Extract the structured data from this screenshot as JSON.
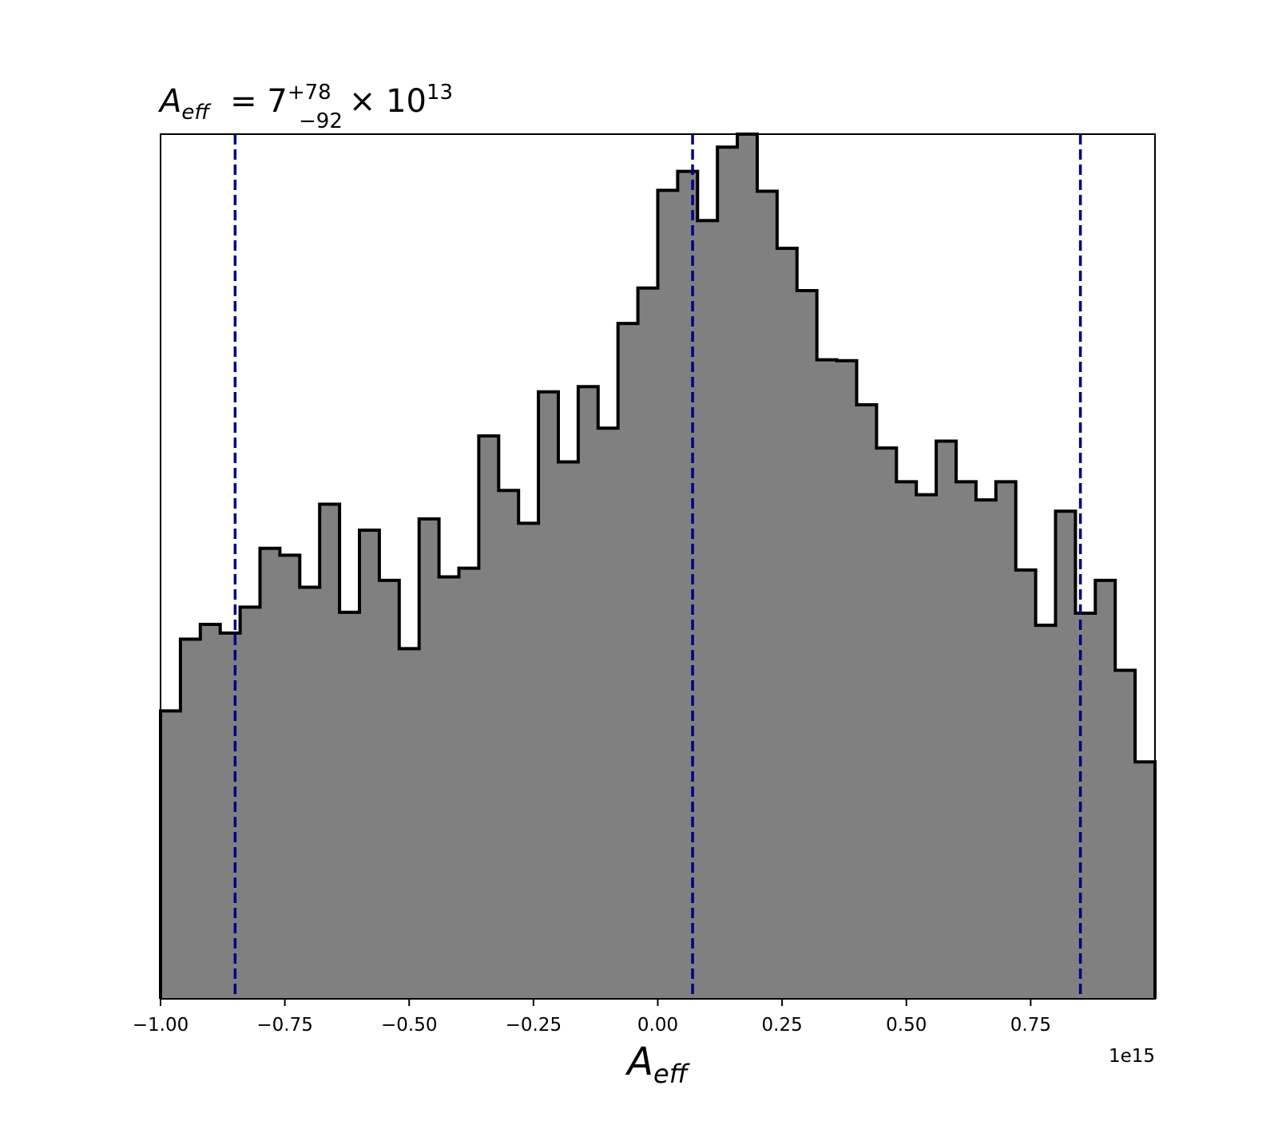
{
  "chart_data": {
    "type": "histogram",
    "title": {
      "symbol": "A",
      "symbol_sub": "eff",
      "equals": "= 7",
      "upper_err": "+78",
      "lower_err": "−92",
      "multiplier": "× 10",
      "exponent": "13"
    },
    "xlabel": {
      "symbol": "A",
      "symbol_sub": "eff"
    },
    "x_offset_label": "1e15",
    "xlim": [
      -1.0,
      1.0
    ],
    "ylim": [
      0,
      100
    ],
    "xticks": [
      {
        "value": -1.0,
        "label": "−1.00"
      },
      {
        "value": -0.75,
        "label": "−0.75"
      },
      {
        "value": -0.5,
        "label": "−0.50"
      },
      {
        "value": -0.25,
        "label": "−0.25"
      },
      {
        "value": 0.0,
        "label": "0.00"
      },
      {
        "value": 0.25,
        "label": "0.25"
      },
      {
        "value": 0.5,
        "label": "0.50"
      },
      {
        "value": 0.75,
        "label": "0.75"
      }
    ],
    "bins_start": -1.0,
    "bin_width": 0.04,
    "counts": [
      33.3,
      41.6,
      43.3,
      42.3,
      45.3,
      52.1,
      51.3,
      47.6,
      57.2,
      44.7,
      54.2,
      48.4,
      40.5,
      55.5,
      48.8,
      49.8,
      65.1,
      58.8,
      55.0,
      70.2,
      62.1,
      70.8,
      66.0,
      78.1,
      82.2,
      93.5,
      95.7,
      90.0,
      98.5,
      100.0,
      93.4,
      86.8,
      81.9,
      73.9,
      73.8,
      68.7,
      63.7,
      59.8,
      58.3,
      64.5,
      59.8,
      57.7,
      59.8,
      49.6,
      43.2,
      56.4,
      44.6,
      48.4,
      38.0,
      27.4
    ],
    "quantile_lines": [
      -0.85,
      0.07,
      0.85
    ],
    "colors": {
      "fill": "#808080",
      "edge": "#000000",
      "quantile": "#000080"
    }
  }
}
